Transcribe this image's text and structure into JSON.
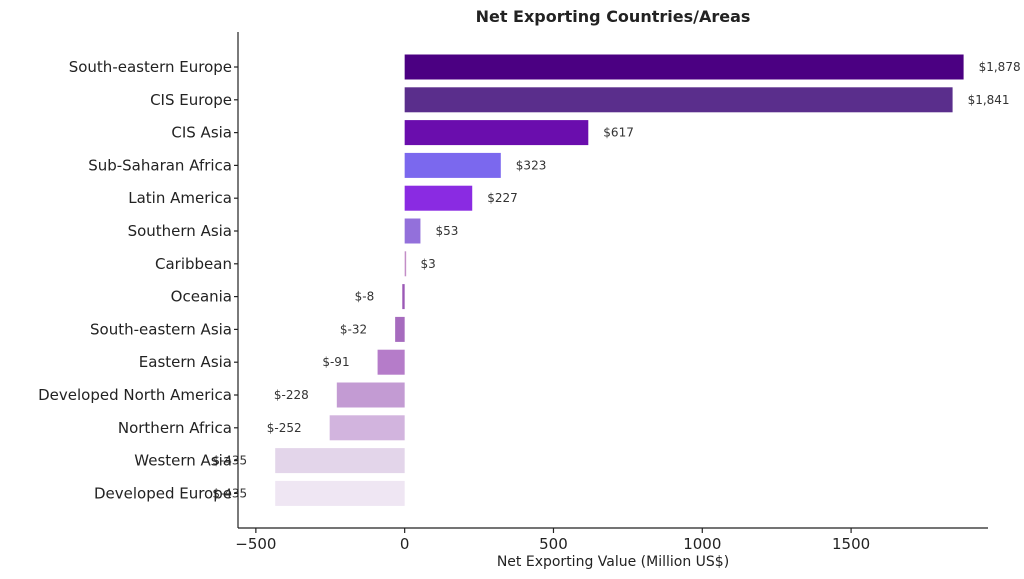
{
  "chart_data": {
    "type": "bar",
    "orientation": "horizontal",
    "title": "Net Exporting Countries/Areas",
    "xlabel": "Net Exporting Value (Million US$)",
    "ylabel": "",
    "xlim": [
      -560,
      1960
    ],
    "xticks": [
      -500,
      0,
      500,
      1000,
      1500
    ],
    "xtick_labels": [
      "−500",
      "0",
      "500",
      "1000",
      "1500"
    ],
    "grid": false,
    "categories": [
      "South-eastern Europe",
      "CIS Europe",
      "CIS Asia",
      "Sub-Saharan Africa",
      "Latin America",
      "Southern Asia",
      "Caribbean",
      "Oceania",
      "South-eastern Asia",
      "Eastern Asia",
      "Developed North America",
      "Northern Africa",
      "Western Asia",
      "Developed Europe"
    ],
    "values": [
      1878,
      1841,
      617,
      323,
      227,
      53,
      3,
      -8,
      -32,
      -91,
      -228,
      -252,
      -435,
      -435
    ],
    "value_labels": [
      "$1,878",
      "$1,841",
      "$617",
      "$323",
      "$227",
      "$53",
      "$3",
      "$-8",
      "$-32",
      "$-91",
      "$-228",
      "$-252",
      "$-435",
      "$-435"
    ],
    "colors": [
      "#4b0082",
      "#5a2e8c",
      "#6a0dad",
      "#7b68ee",
      "#8a2be2",
      "#9370db",
      "#c38ec7",
      "#9b59b6",
      "#a66bbe",
      "#b57cc9",
      "#c39bd3",
      "#d2b4de",
      "#e3d5ea",
      "#efe6f3"
    ]
  }
}
